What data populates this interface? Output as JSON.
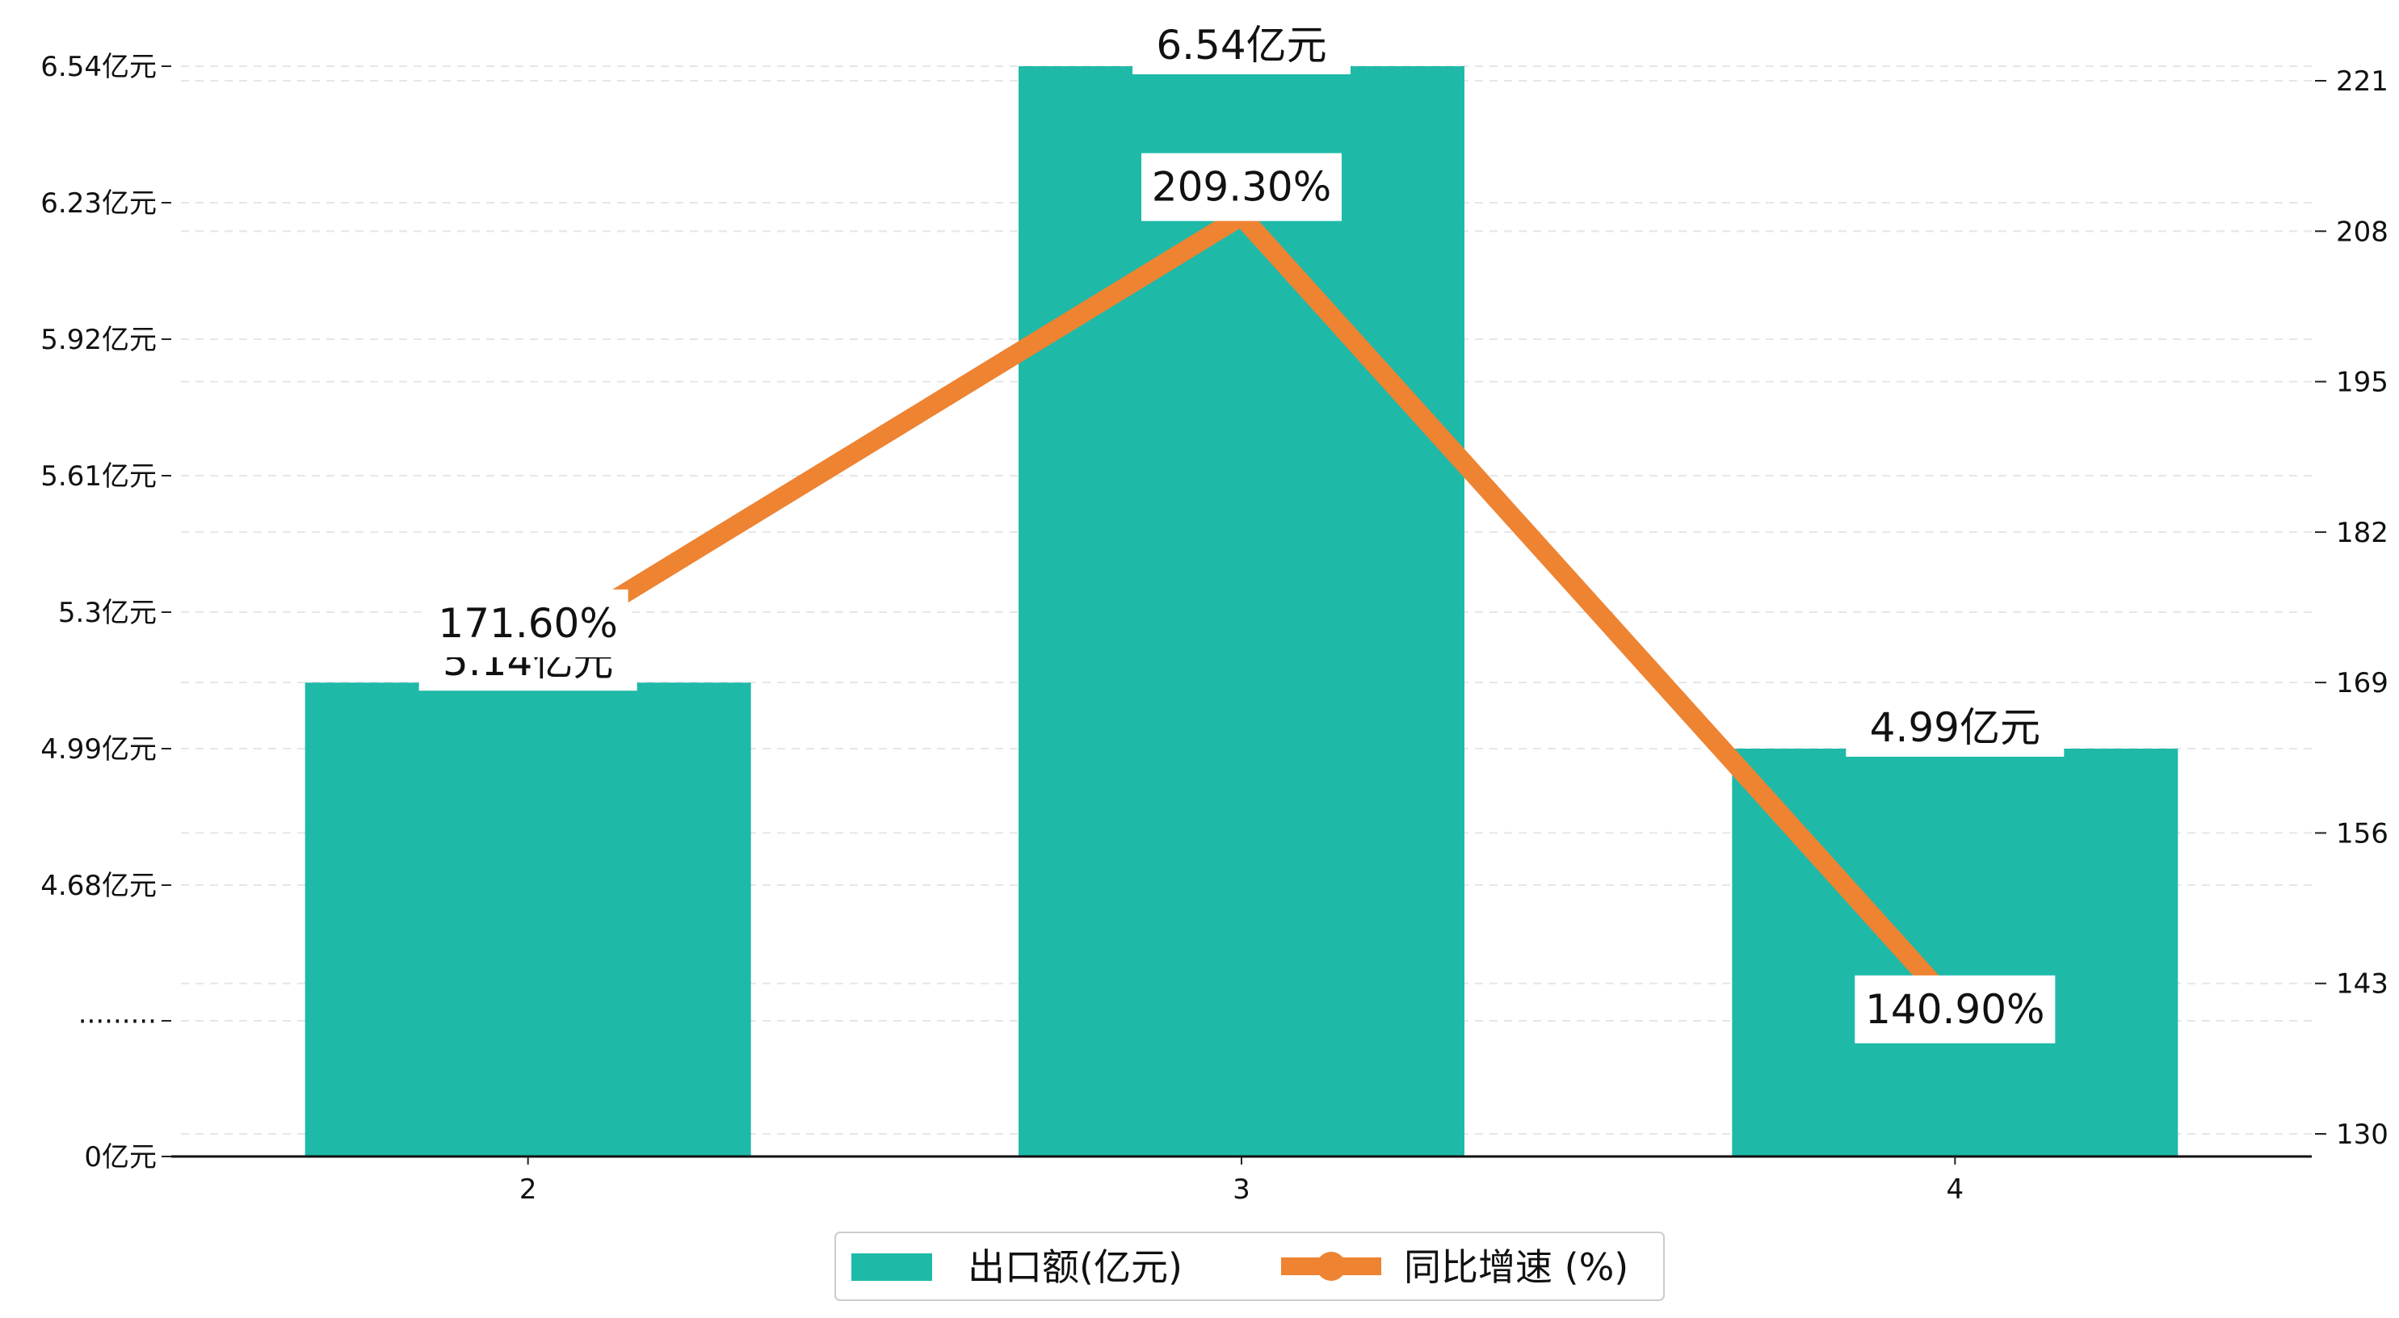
{
  "chart_data": {
    "type": "bar",
    "categories": [
      "2",
      "3",
      "4"
    ],
    "series": [
      {
        "name": "出口额(亿元)",
        "type": "bar",
        "axis": "left",
        "values": [
          5.14,
          6.54,
          4.99
        ],
        "labels": [
          "5.14亿元",
          "6.54亿元",
          "4.99亿元"
        ],
        "color": "#1FB9A8"
      },
      {
        "name": "同比增速 (%)",
        "type": "line",
        "axis": "right",
        "values": [
          171.6,
          209.3,
          140.9
        ],
        "labels": [
          "171.60%",
          "209.30%",
          "140.90%"
        ],
        "color": "#EE8332"
      }
    ],
    "y_left": {
      "ticks": [
        {
          "value": 0,
          "label": "0亿元"
        },
        {
          "value": 4.37,
          "label": "·········"
        },
        {
          "value": 4.68,
          "label": "4.68亿元"
        },
        {
          "value": 4.99,
          "label": "4.99亿元"
        },
        {
          "value": 5.3,
          "label": "5.3亿元"
        },
        {
          "value": 5.61,
          "label": "5.61亿元"
        },
        {
          "value": 5.92,
          "label": "5.92亿元"
        },
        {
          "value": 6.23,
          "label": "6.23亿元"
        },
        {
          "value": 6.54,
          "label": "6.54亿元"
        }
      ],
      "note": "broken axis: 0 then 4.37 to 6.54"
    },
    "y_right": {
      "ticks": [
        130,
        143,
        156,
        169,
        182,
        195,
        208,
        221
      ],
      "ylim": [
        128.7,
        226
      ]
    },
    "grid": "horizontal dashed",
    "legend_position": "bottom-center"
  }
}
